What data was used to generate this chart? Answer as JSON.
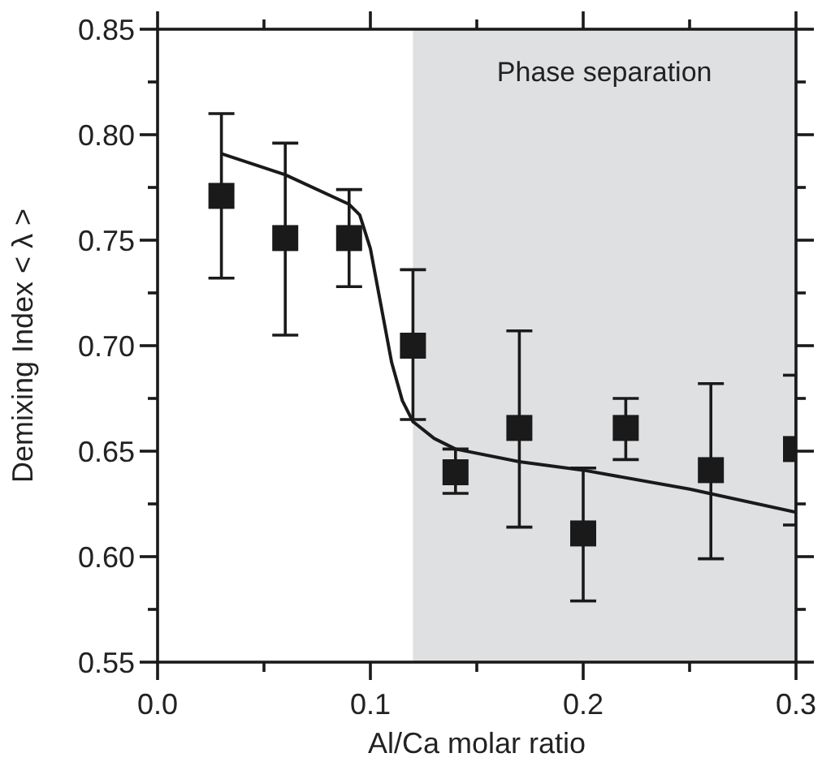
{
  "chart_data": {
    "type": "scatter",
    "xlabel": "Al/Ca molar ratio",
    "ylabel": "Demixing Index < λ >",
    "xlim": [
      0,
      0.3
    ],
    "ylim": [
      0.55,
      0.85
    ],
    "xticks": [
      {
        "value": 0,
        "label": "0.0"
      },
      {
        "value": 0.05,
        "label": null
      },
      {
        "value": 0.1,
        "label": "0.1"
      },
      {
        "value": 0.15,
        "label": null
      },
      {
        "value": 0.2,
        "label": "0.2"
      },
      {
        "value": 0.25,
        "label": null
      },
      {
        "value": 0.3,
        "label": "0.3"
      }
    ],
    "yticks": [
      {
        "value": 0.55,
        "label": "0.55"
      },
      {
        "value": 0.575,
        "label": null
      },
      {
        "value": 0.6,
        "label": "0.60"
      },
      {
        "value": 0.625,
        "label": null
      },
      {
        "value": 0.65,
        "label": "0.65"
      },
      {
        "value": 0.675,
        "label": null
      },
      {
        "value": 0.7,
        "label": "0.70"
      },
      {
        "value": 0.725,
        "label": null
      },
      {
        "value": 0.75,
        "label": "0.75"
      },
      {
        "value": 0.775,
        "label": null
      },
      {
        "value": 0.8,
        "label": "0.80"
      },
      {
        "value": 0.825,
        "label": null
      },
      {
        "value": 0.85,
        "label": "0.85"
      }
    ],
    "grid": false,
    "bands": [
      {
        "axis": "x",
        "from": 0.12,
        "to": 0.3,
        "label": "Phase separation",
        "color": "#dfe0e2"
      }
    ],
    "series": [
      {
        "type": "line",
        "color": "#1a1a1a",
        "marker": "none",
        "line_style": "solid",
        "x": [
          0.03,
          0.06,
          0.09,
          0.095,
          0.1,
          0.105,
          0.11,
          0.115,
          0.12,
          0.13,
          0.14,
          0.17,
          0.2,
          0.25,
          0.3
        ],
        "values": [
          0.791,
          0.781,
          0.767,
          0.762,
          0.746,
          0.719,
          0.692,
          0.674,
          0.664,
          0.656,
          0.651,
          0.645,
          0.641,
          0.632,
          0.621
        ]
      },
      {
        "type": "scatter",
        "color": "#1a1a1a",
        "marker": "square",
        "x": [
          0.03,
          0.06,
          0.09,
          0.12,
          0.14,
          0.17,
          0.2,
          0.22,
          0.26,
          0.3
        ],
        "values": [
          0.771,
          0.751,
          0.751,
          0.7,
          0.64,
          0.661,
          0.611,
          0.661,
          0.641,
          0.651
        ],
        "errors": [
          [
            0.732,
            0.81
          ],
          [
            0.705,
            0.796
          ],
          [
            0.728,
            0.774
          ],
          [
            0.665,
            0.736
          ],
          [
            0.63,
            0.651
          ],
          [
            0.614,
            0.707
          ],
          [
            0.579,
            0.642
          ],
          [
            0.646,
            0.675
          ],
          [
            0.599,
            0.682
          ],
          [
            0.615,
            0.686
          ]
        ]
      }
    ]
  }
}
